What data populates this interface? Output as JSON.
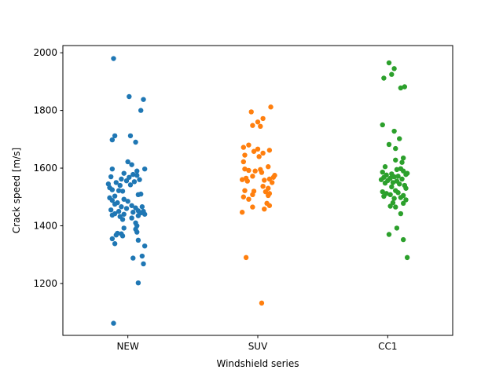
{
  "chart_data": {
    "type": "scatter",
    "title": "",
    "xlabel": "Windshield series",
    "ylabel": "Crack speed [m/s]",
    "categories": [
      "NEW",
      "SUV",
      "CC1"
    ],
    "ylim": [
      1020,
      2025
    ],
    "yticks": [
      1200,
      1400,
      1600,
      1800,
      2000
    ],
    "grid": false,
    "legend": "none",
    "series": [
      {
        "category": "NEW",
        "color": "#1f77b4",
        "points": [
          {
            "x": -0.11,
            "y": 1980
          },
          {
            "x": 0.01,
            "y": 1848
          },
          {
            "x": 0.12,
            "y": 1838
          },
          {
            "x": 0.1,
            "y": 1800
          },
          {
            "x": -0.1,
            "y": 1712
          },
          {
            "x": 0.02,
            "y": 1712
          },
          {
            "x": -0.12,
            "y": 1698
          },
          {
            "x": 0.06,
            "y": 1690
          },
          {
            "x": 0.0,
            "y": 1622
          },
          {
            "x": 0.03,
            "y": 1612
          },
          {
            "x": -0.12,
            "y": 1597
          },
          {
            "x": 0.13,
            "y": 1597
          },
          {
            "x": 0.07,
            "y": 1590
          },
          {
            "x": -0.03,
            "y": 1582
          },
          {
            "x": 0.04,
            "y": 1578
          },
          {
            "x": 0.07,
            "y": 1575
          },
          {
            "x": -0.13,
            "y": 1570
          },
          {
            "x": 0.01,
            "y": 1568
          },
          {
            "x": -0.05,
            "y": 1562
          },
          {
            "x": 0.09,
            "y": 1560
          },
          {
            "x": -0.01,
            "y": 1556
          },
          {
            "x": 0.05,
            "y": 1553
          },
          {
            "x": -0.09,
            "y": 1550
          },
          {
            "x": -0.15,
            "y": 1545
          },
          {
            "x": 0.02,
            "y": 1542
          },
          {
            "x": -0.06,
            "y": 1540
          },
          {
            "x": -0.14,
            "y": 1532
          },
          {
            "x": -0.12,
            "y": 1525
          },
          {
            "x": -0.07,
            "y": 1522
          },
          {
            "x": -0.04,
            "y": 1520
          },
          {
            "x": 0.1,
            "y": 1510
          },
          {
            "x": 0.08,
            "y": 1508
          },
          {
            "x": -0.1,
            "y": 1503
          },
          {
            "x": -0.14,
            "y": 1497
          },
          {
            "x": -0.03,
            "y": 1492
          },
          {
            "x": -0.12,
            "y": 1488
          },
          {
            "x": 0.0,
            "y": 1485
          },
          {
            "x": -0.08,
            "y": 1480
          },
          {
            "x": -0.1,
            "y": 1475
          },
          {
            "x": 0.03,
            "y": 1470
          },
          {
            "x": -0.05,
            "y": 1466
          },
          {
            "x": 0.11,
            "y": 1466
          },
          {
            "x": 0.06,
            "y": 1462
          },
          {
            "x": -0.01,
            "y": 1460
          },
          {
            "x": -0.13,
            "y": 1455
          },
          {
            "x": 0.08,
            "y": 1452
          },
          {
            "x": -0.07,
            "y": 1450
          },
          {
            "x": 0.12,
            "y": 1450
          },
          {
            "x": 0.04,
            "y": 1447
          },
          {
            "x": 0.1,
            "y": 1445
          },
          {
            "x": -0.1,
            "y": 1442
          },
          {
            "x": -0.03,
            "y": 1440
          },
          {
            "x": 0.13,
            "y": 1440
          },
          {
            "x": -0.12,
            "y": 1437
          },
          {
            "x": 0.08,
            "y": 1435
          },
          {
            "x": -0.06,
            "y": 1432
          },
          {
            "x": 0.03,
            "y": 1427
          },
          {
            "x": -0.04,
            "y": 1422
          },
          {
            "x": 0.06,
            "y": 1410
          },
          {
            "x": 0.07,
            "y": 1400
          },
          {
            "x": -0.03,
            "y": 1392
          },
          {
            "x": 0.06,
            "y": 1388
          },
          {
            "x": 0.07,
            "y": 1378
          },
          {
            "x": -0.08,
            "y": 1374
          },
          {
            "x": -0.05,
            "y": 1372
          },
          {
            "x": -0.09,
            "y": 1368
          },
          {
            "x": -0.04,
            "y": 1365
          },
          {
            "x": -0.12,
            "y": 1355
          },
          {
            "x": 0.08,
            "y": 1350
          },
          {
            "x": -0.1,
            "y": 1338
          },
          {
            "x": 0.13,
            "y": 1330
          },
          {
            "x": 0.11,
            "y": 1295
          },
          {
            "x": 0.04,
            "y": 1288
          },
          {
            "x": 0.12,
            "y": 1268
          },
          {
            "x": 0.08,
            "y": 1202
          },
          {
            "x": -0.11,
            "y": 1062
          }
        ]
      },
      {
        "category": "SUV",
        "color": "#ff7f0e",
        "points": [
          {
            "x": 0.1,
            "y": 1812
          },
          {
            "x": -0.05,
            "y": 1795
          },
          {
            "x": 0.04,
            "y": 1772
          },
          {
            "x": 0.0,
            "y": 1760
          },
          {
            "x": -0.04,
            "y": 1748
          },
          {
            "x": 0.02,
            "y": 1745
          },
          {
            "x": -0.07,
            "y": 1680
          },
          {
            "x": -0.11,
            "y": 1672
          },
          {
            "x": 0.0,
            "y": 1666
          },
          {
            "x": 0.09,
            "y": 1662
          },
          {
            "x": -0.03,
            "y": 1658
          },
          {
            "x": 0.04,
            "y": 1652
          },
          {
            "x": -0.1,
            "y": 1645
          },
          {
            "x": 0.01,
            "y": 1640
          },
          {
            "x": -0.11,
            "y": 1622
          },
          {
            "x": 0.08,
            "y": 1605
          },
          {
            "x": -0.1,
            "y": 1597
          },
          {
            "x": 0.02,
            "y": 1595
          },
          {
            "x": -0.07,
            "y": 1592
          },
          {
            "x": -0.02,
            "y": 1590
          },
          {
            "x": 0.03,
            "y": 1585
          },
          {
            "x": 0.13,
            "y": 1575
          },
          {
            "x": -0.04,
            "y": 1572
          },
          {
            "x": 0.12,
            "y": 1568
          },
          {
            "x": -0.09,
            "y": 1565
          },
          {
            "x": 0.09,
            "y": 1562
          },
          {
            "x": -0.12,
            "y": 1560
          },
          {
            "x": 0.05,
            "y": 1558
          },
          {
            "x": -0.08,
            "y": 1555
          },
          {
            "x": 0.11,
            "y": 1550
          },
          {
            "x": 0.04,
            "y": 1537
          },
          {
            "x": 0.08,
            "y": 1530
          },
          {
            "x": -0.1,
            "y": 1522
          },
          {
            "x": -0.03,
            "y": 1520
          },
          {
            "x": 0.06,
            "y": 1518
          },
          {
            "x": 0.09,
            "y": 1512
          },
          {
            "x": -0.04,
            "y": 1508
          },
          {
            "x": 0.08,
            "y": 1505
          },
          {
            "x": -0.11,
            "y": 1500
          },
          {
            "x": -0.07,
            "y": 1492
          },
          {
            "x": 0.07,
            "y": 1478
          },
          {
            "x": 0.09,
            "y": 1470
          },
          {
            "x": -0.04,
            "y": 1465
          },
          {
            "x": 0.05,
            "y": 1458
          },
          {
            "x": -0.12,
            "y": 1447
          },
          {
            "x": -0.09,
            "y": 1290
          },
          {
            "x": 0.03,
            "y": 1132
          }
        ]
      },
      {
        "category": "CC1",
        "color": "#2ca02c",
        "points": [
          {
            "x": 0.01,
            "y": 1965
          },
          {
            "x": 0.05,
            "y": 1945
          },
          {
            "x": 0.03,
            "y": 1925
          },
          {
            "x": -0.03,
            "y": 1912
          },
          {
            "x": 0.13,
            "y": 1882
          },
          {
            "x": 0.1,
            "y": 1878
          },
          {
            "x": -0.04,
            "y": 1750
          },
          {
            "x": 0.05,
            "y": 1728
          },
          {
            "x": 0.09,
            "y": 1702
          },
          {
            "x": 0.01,
            "y": 1682
          },
          {
            "x": 0.06,
            "y": 1668
          },
          {
            "x": 0.12,
            "y": 1635
          },
          {
            "x": 0.06,
            "y": 1628
          },
          {
            "x": 0.11,
            "y": 1620
          },
          {
            "x": -0.02,
            "y": 1605
          },
          {
            "x": 0.1,
            "y": 1598
          },
          {
            "x": 0.07,
            "y": 1595
          },
          {
            "x": 0.12,
            "y": 1590
          },
          {
            "x": -0.04,
            "y": 1586
          },
          {
            "x": 0.15,
            "y": 1582
          },
          {
            "x": 0.03,
            "y": 1580
          },
          {
            "x": 0.14,
            "y": 1578
          },
          {
            "x": -0.01,
            "y": 1576
          },
          {
            "x": 0.08,
            "y": 1572
          },
          {
            "x": 0.05,
            "y": 1570
          },
          {
            "x": -0.03,
            "y": 1568
          },
          {
            "x": 0.02,
            "y": 1565
          },
          {
            "x": 0.11,
            "y": 1562
          },
          {
            "x": -0.05,
            "y": 1560
          },
          {
            "x": 0.0,
            "y": 1557
          },
          {
            "x": 0.07,
            "y": 1555
          },
          {
            "x": 0.04,
            "y": 1550
          },
          {
            "x": -0.02,
            "y": 1548
          },
          {
            "x": 0.09,
            "y": 1545
          },
          {
            "x": 0.13,
            "y": 1540
          },
          {
            "x": 0.03,
            "y": 1535
          },
          {
            "x": 0.14,
            "y": 1530
          },
          {
            "x": 0.06,
            "y": 1522
          },
          {
            "x": -0.04,
            "y": 1518
          },
          {
            "x": 0.08,
            "y": 1515
          },
          {
            "x": -0.01,
            "y": 1512
          },
          {
            "x": 0.02,
            "y": 1508
          },
          {
            "x": 0.12,
            "y": 1505
          },
          {
            "x": -0.03,
            "y": 1502
          },
          {
            "x": 0.1,
            "y": 1498
          },
          {
            "x": 0.05,
            "y": 1495
          },
          {
            "x": 0.14,
            "y": 1490
          },
          {
            "x": 0.04,
            "y": 1480
          },
          {
            "x": 0.12,
            "y": 1478
          },
          {
            "x": 0.02,
            "y": 1468
          },
          {
            "x": 0.06,
            "y": 1465
          },
          {
            "x": 0.1,
            "y": 1442
          },
          {
            "x": 0.07,
            "y": 1392
          },
          {
            "x": 0.01,
            "y": 1370
          },
          {
            "x": 0.12,
            "y": 1352
          },
          {
            "x": 0.15,
            "y": 1290
          }
        ]
      }
    ]
  }
}
